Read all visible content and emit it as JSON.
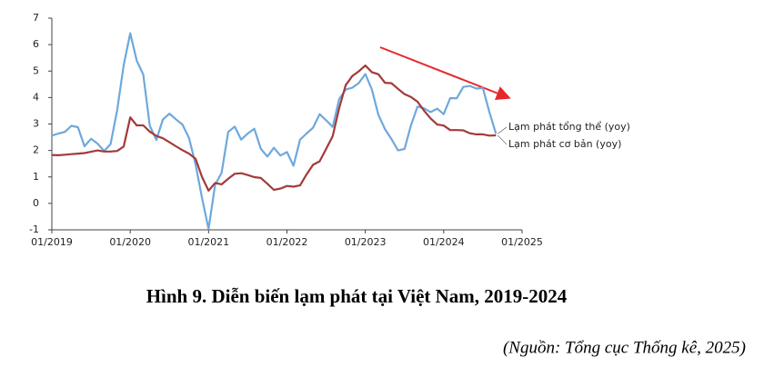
{
  "chart_data": {
    "type": "line",
    "title": "Hình 9. Diễn biến lạm phát tại Việt Nam, 2019-2024",
    "source": "(Nguồn: Tổng cục Thống kê, 2025)",
    "x": [
      "01/2019",
      "02/2019",
      "03/2019",
      "04/2019",
      "05/2019",
      "06/2019",
      "07/2019",
      "08/2019",
      "09/2019",
      "10/2019",
      "11/2019",
      "12/2019",
      "01/2020",
      "02/2020",
      "03/2020",
      "04/2020",
      "05/2020",
      "06/2020",
      "07/2020",
      "08/2020",
      "09/2020",
      "10/2020",
      "11/2020",
      "12/2020",
      "01/2021",
      "02/2021",
      "03/2021",
      "04/2021",
      "05/2021",
      "06/2021",
      "07/2021",
      "08/2021",
      "09/2021",
      "10/2021",
      "11/2021",
      "12/2021",
      "01/2022",
      "02/2022",
      "03/2022",
      "04/2022",
      "05/2022",
      "06/2022",
      "07/2022",
      "08/2022",
      "09/2022",
      "10/2022",
      "11/2022",
      "12/2022",
      "01/2023",
      "02/2023",
      "03/2023",
      "04/2023",
      "05/2023",
      "06/2023",
      "07/2023",
      "08/2023",
      "09/2023",
      "10/2023",
      "11/2023",
      "12/2023",
      "01/2024",
      "02/2024",
      "03/2024",
      "04/2024",
      "05/2024",
      "06/2024",
      "07/2024",
      "08/2024",
      "09/2024"
    ],
    "series": [
      {
        "name": "Lạm phát tổng thể (yoy)",
        "color": "#6fa8dc",
        "values": [
          2.56,
          2.64,
          2.7,
          2.93,
          2.88,
          2.16,
          2.44,
          2.26,
          1.98,
          2.24,
          3.52,
          5.23,
          6.43,
          5.4,
          4.87,
          2.93,
          2.4,
          3.17,
          3.39,
          3.18,
          2.98,
          2.47,
          1.48,
          0.19,
          -0.97,
          0.7,
          1.16,
          2.7,
          2.9,
          2.41,
          2.64,
          2.82,
          2.06,
          1.77,
          2.1,
          1.81,
          1.94,
          1.42,
          2.41,
          2.64,
          2.86,
          3.37,
          3.14,
          2.89,
          3.94,
          4.3,
          4.37,
          4.55,
          4.89,
          4.31,
          3.35,
          2.81,
          2.43,
          2.0,
          2.06,
          2.96,
          3.66,
          3.59,
          3.45,
          3.58,
          3.37,
          3.98,
          3.97,
          4.4,
          4.44,
          4.34,
          4.36,
          3.45,
          2.63
        ]
      },
      {
        "name": "Lạm phát cơ bản (yoy)",
        "color": "#a33a3a",
        "values": [
          1.83,
          1.82,
          1.84,
          1.86,
          1.88,
          1.9,
          1.95,
          2.0,
          1.96,
          1.96,
          1.98,
          2.15,
          3.25,
          2.95,
          2.95,
          2.71,
          2.55,
          2.46,
          2.31,
          2.16,
          2.01,
          1.88,
          1.69,
          0.99,
          0.48,
          0.77,
          0.72,
          0.93,
          1.12,
          1.14,
          1.07,
          0.99,
          0.96,
          0.74,
          0.51,
          0.56,
          0.66,
          0.63,
          0.68,
          1.09,
          1.46,
          1.59,
          2.06,
          2.54,
          3.6,
          4.47,
          4.81,
          4.99,
          5.21,
          4.96,
          4.88,
          4.56,
          4.54,
          4.33,
          4.13,
          4.02,
          3.84,
          3.5,
          3.21,
          2.98,
          2.94,
          2.77,
          2.77,
          2.76,
          2.65,
          2.61,
          2.61,
          2.56,
          2.57
        ]
      }
    ],
    "xlim": [
      "01/2019",
      "01/2025"
    ],
    "xticks": [
      "01/2019",
      "01/2020",
      "01/2021",
      "01/2022",
      "01/2023",
      "01/2024",
      "01/2025"
    ],
    "ylim": [
      -1,
      7
    ],
    "yticks": [
      -1,
      0,
      1,
      2,
      3,
      4,
      5,
      6,
      7
    ],
    "grid": false
  }
}
